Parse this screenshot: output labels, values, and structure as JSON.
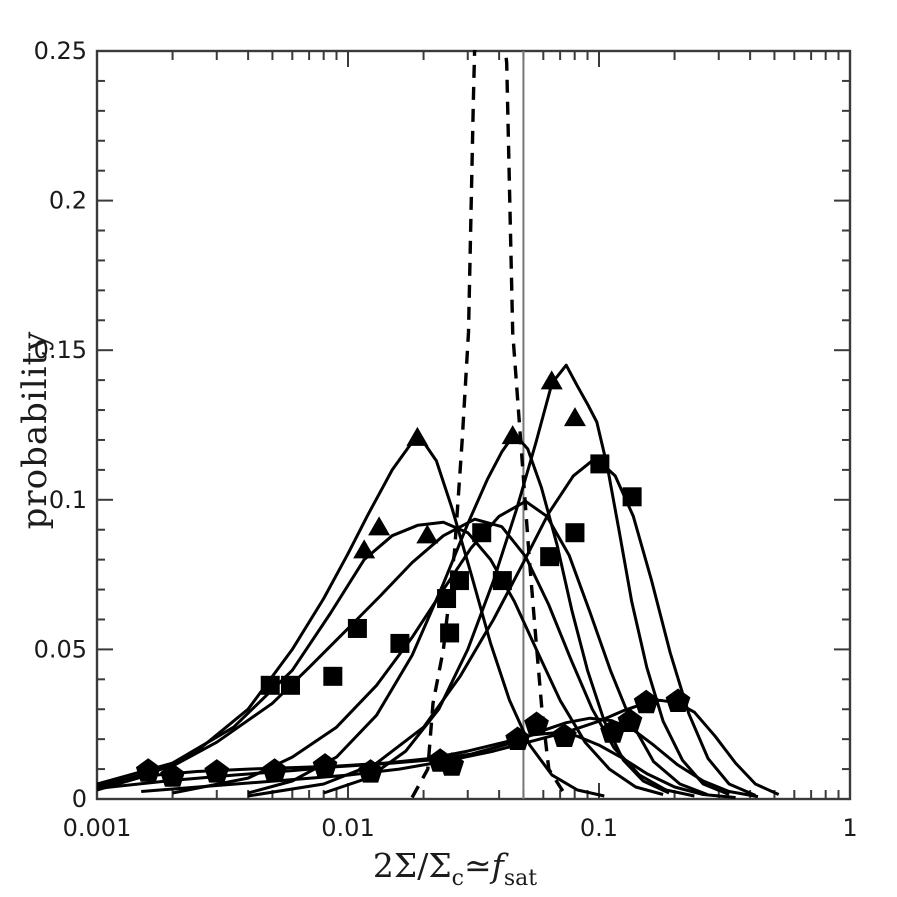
{
  "figure": {
    "background": "#ffffff",
    "frame_color": "#3a3a3a",
    "curve_color": "#000000",
    "reference_line_color": "#777777",
    "tick_label_color": "#1a1a1a"
  },
  "chart_data": {
    "type": "line",
    "title": "",
    "ylabel": "probability",
    "xlabel": {
      "pre": "2Σ/Σ",
      "sub_c": "c",
      "simeq": "≃",
      "f": "f",
      "sub_sat": "sat",
      "plain": "2Σ/Σc ≃ fsat"
    },
    "x_axis": {
      "scale": "log",
      "min": 0.001,
      "max": 1,
      "major_ticks": [
        {
          "v": 0.001,
          "label": "0.001"
        },
        {
          "v": 0.01,
          "label": "0.01"
        },
        {
          "v": 0.1,
          "label": "0.1"
        },
        {
          "v": 1,
          "label": "1"
        }
      ]
    },
    "y_axis": {
      "scale": "linear",
      "min": 0,
      "max": 0.25,
      "minor_step": 0.01,
      "major_ticks": [
        {
          "v": 0,
          "label": "0"
        },
        {
          "v": 0.05,
          "label": "0.05"
        },
        {
          "v": 0.1,
          "label": "0.1"
        },
        {
          "v": 0.15,
          "label": "0.15"
        },
        {
          "v": 0.2,
          "label": "0.2"
        },
        {
          "v": 0.25,
          "label": "0.25"
        }
      ]
    },
    "reference_vline": {
      "x": 0.05
    },
    "legend": "none",
    "grid": "off",
    "series": [
      {
        "name": "pentagon-curve-1",
        "marker": "pentagon",
        "line": "solid",
        "points": [
          [
            0.001,
            0.005
          ],
          [
            0.0016,
            0.0078
          ],
          [
            0.0025,
            0.0092
          ],
          [
            0.004,
            0.01
          ],
          [
            0.006,
            0.0105
          ],
          [
            0.009,
            0.011
          ],
          [
            0.014,
            0.012
          ],
          [
            0.021,
            0.0135
          ],
          [
            0.03,
            0.016
          ],
          [
            0.042,
            0.019
          ],
          [
            0.055,
            0.0215
          ],
          [
            0.068,
            0.0222
          ],
          [
            0.082,
            0.021
          ],
          [
            0.1,
            0.018
          ],
          [
            0.125,
            0.0135
          ],
          [
            0.155,
            0.0085
          ],
          [
            0.2,
            0.004
          ],
          [
            0.26,
            0.0015
          ],
          [
            0.35,
            0.0005
          ]
        ],
        "marker_points": [
          [
            0.0016,
            0.0093
          ],
          [
            0.0051,
            0.0093
          ],
          [
            0.0259,
            0.0113
          ],
          [
            0.0474,
            0.0199
          ]
        ]
      },
      {
        "name": "pentagon-curve-2",
        "marker": "pentagon",
        "line": "solid",
        "points": [
          [
            0.001,
            0.0035
          ],
          [
            0.002,
            0.0062
          ],
          [
            0.0035,
            0.008
          ],
          [
            0.006,
            0.0095
          ],
          [
            0.009,
            0.0108
          ],
          [
            0.014,
            0.0118
          ],
          [
            0.021,
            0.013
          ],
          [
            0.031,
            0.015
          ],
          [
            0.044,
            0.0185
          ],
          [
            0.058,
            0.0225
          ],
          [
            0.074,
            0.0255
          ],
          [
            0.092,
            0.027
          ],
          [
            0.112,
            0.0262
          ],
          [
            0.135,
            0.0235
          ],
          [
            0.165,
            0.018
          ],
          [
            0.205,
            0.0115
          ],
          [
            0.26,
            0.006
          ],
          [
            0.33,
            0.0025
          ],
          [
            0.43,
            0.0008
          ]
        ],
        "marker_points": [
          [
            0.002,
            0.0076
          ],
          [
            0.0081,
            0.011
          ],
          [
            0.0564,
            0.0249
          ],
          [
            0.1133,
            0.0223
          ],
          [
            0.1329,
            0.0259
          ]
        ]
      },
      {
        "name": "pentagon-curve-3",
        "marker": "pentagon",
        "line": "solid",
        "points": [
          [
            0.0015,
            0.0025
          ],
          [
            0.003,
            0.0045
          ],
          [
            0.006,
            0.0065
          ],
          [
            0.01,
            0.008
          ],
          [
            0.016,
            0.01
          ],
          [
            0.025,
            0.0128
          ],
          [
            0.038,
            0.016
          ],
          [
            0.055,
            0.0195
          ],
          [
            0.075,
            0.0225
          ],
          [
            0.1,
            0.026
          ],
          [
            0.125,
            0.0295
          ],
          [
            0.15,
            0.0318
          ],
          [
            0.175,
            0.033
          ],
          [
            0.205,
            0.0322
          ],
          [
            0.24,
            0.029
          ],
          [
            0.29,
            0.021
          ],
          [
            0.35,
            0.012
          ],
          [
            0.42,
            0.005
          ],
          [
            0.52,
            0.0015
          ]
        ],
        "marker_points": [
          [
            0.003,
            0.009
          ],
          [
            0.0123,
            0.009
          ],
          [
            0.0233,
            0.0126
          ],
          [
            0.0728,
            0.0209
          ],
          [
            0.1542,
            0.0322
          ],
          [
            0.2064,
            0.0326
          ]
        ]
      },
      {
        "name": "square-curve-1",
        "marker": "square",
        "line": "solid",
        "points": [
          [
            0.001,
            0.004
          ],
          [
            0.002,
            0.011
          ],
          [
            0.003,
            0.019
          ],
          [
            0.005,
            0.032
          ],
          [
            0.007,
            0.044
          ],
          [
            0.01,
            0.057
          ],
          [
            0.0135,
            0.068
          ],
          [
            0.018,
            0.079
          ],
          [
            0.024,
            0.088
          ],
          [
            0.032,
            0.0935
          ],
          [
            0.041,
            0.091
          ],
          [
            0.051,
            0.081
          ],
          [
            0.063,
            0.065
          ],
          [
            0.077,
            0.047
          ],
          [
            0.094,
            0.03
          ],
          [
            0.115,
            0.017
          ],
          [
            0.145,
            0.008
          ],
          [
            0.185,
            0.003
          ],
          [
            0.24,
            0.001
          ]
        ],
        "marker_points": [
          [
            0.0049,
            0.038
          ],
          [
            0.0109,
            0.057
          ],
          [
            0.0247,
            0.067
          ],
          [
            0.0412,
            0.073
          ]
        ]
      },
      {
        "name": "square-curve-2",
        "marker": "square",
        "line": "solid",
        "points": [
          [
            0.002,
            0.002
          ],
          [
            0.004,
            0.007
          ],
          [
            0.006,
            0.014
          ],
          [
            0.009,
            0.024
          ],
          [
            0.013,
            0.038
          ],
          [
            0.018,
            0.054
          ],
          [
            0.024,
            0.07
          ],
          [
            0.031,
            0.084
          ],
          [
            0.04,
            0.0945
          ],
          [
            0.051,
            0.0995
          ],
          [
            0.062,
            0.0945
          ],
          [
            0.076,
            0.0815
          ],
          [
            0.092,
            0.0625
          ],
          [
            0.111,
            0.043
          ],
          [
            0.135,
            0.0255
          ],
          [
            0.165,
            0.0125
          ],
          [
            0.21,
            0.005
          ],
          [
            0.27,
            0.0015
          ]
        ],
        "marker_points": [
          [
            0.0059,
            0.038
          ],
          [
            0.0161,
            0.052
          ],
          [
            0.0278,
            0.073
          ],
          [
            0.0636,
            0.081
          ]
        ]
      },
      {
        "name": "square-curve-3",
        "marker": "square",
        "line": "solid",
        "points": [
          [
            0.004,
            0.001
          ],
          [
            0.008,
            0.005
          ],
          [
            0.013,
            0.012
          ],
          [
            0.02,
            0.024
          ],
          [
            0.028,
            0.041
          ],
          [
            0.038,
            0.06
          ],
          [
            0.05,
            0.079
          ],
          [
            0.063,
            0.0955
          ],
          [
            0.079,
            0.108
          ],
          [
            0.097,
            0.114
          ],
          [
            0.116,
            0.108
          ],
          [
            0.137,
            0.0945
          ],
          [
            0.162,
            0.073
          ],
          [
            0.192,
            0.049
          ],
          [
            0.228,
            0.0285
          ],
          [
            0.272,
            0.0135
          ],
          [
            0.33,
            0.005
          ],
          [
            0.42,
            0.0012
          ]
        ],
        "marker_points": [
          [
            0.0087,
            0.041
          ],
          [
            0.0254,
            0.0555
          ],
          [
            0.0341,
            0.089
          ],
          [
            0.0802,
            0.089
          ],
          [
            0.1008,
            0.112
          ],
          [
            0.1355,
            0.101
          ]
        ]
      },
      {
        "name": "triangle-curve-1",
        "marker": "triangle",
        "line": "solid",
        "points": [
          [
            0.001,
            0.003
          ],
          [
            0.0016,
            0.008
          ],
          [
            0.0025,
            0.016
          ],
          [
            0.004,
            0.03
          ],
          [
            0.006,
            0.05
          ],
          [
            0.008,
            0.067
          ],
          [
            0.01,
            0.082
          ],
          [
            0.012,
            0.095
          ],
          [
            0.015,
            0.11
          ],
          [
            0.019,
            0.122
          ],
          [
            0.0225,
            0.113
          ],
          [
            0.026,
            0.097
          ],
          [
            0.031,
            0.075
          ],
          [
            0.037,
            0.052
          ],
          [
            0.044,
            0.033
          ],
          [
            0.053,
            0.018
          ],
          [
            0.065,
            0.008
          ],
          [
            0.082,
            0.003
          ],
          [
            0.105,
            0.001
          ]
        ],
        "marker_points": [
          [
            0.0133,
            0.0908
          ],
          [
            0.0189,
            0.1207
          ]
        ]
      },
      {
        "name": "triangle-curve-2-broad",
        "marker": "triangle",
        "line": "solid",
        "points": [
          [
            0.001,
            0.005
          ],
          [
            0.002,
            0.012
          ],
          [
            0.0035,
            0.024
          ],
          [
            0.006,
            0.043
          ],
          [
            0.0085,
            0.062
          ],
          [
            0.0116,
            0.08
          ],
          [
            0.015,
            0.088
          ],
          [
            0.019,
            0.0915
          ],
          [
            0.024,
            0.0925
          ],
          [
            0.03,
            0.089
          ],
          [
            0.037,
            0.08
          ],
          [
            0.046,
            0.066
          ],
          [
            0.057,
            0.049
          ],
          [
            0.07,
            0.033
          ],
          [
            0.088,
            0.019
          ],
          [
            0.11,
            0.01
          ],
          [
            0.14,
            0.004
          ],
          [
            0.18,
            0.0015
          ]
        ],
        "marker_points": [
          [
            0.0116,
            0.0831
          ],
          [
            0.0207,
            0.0881
          ]
        ]
      },
      {
        "name": "triangle-curve-3",
        "marker": "triangle",
        "line": "solid",
        "points": [
          [
            0.004,
            0.002
          ],
          [
            0.006,
            0.006
          ],
          [
            0.009,
            0.014
          ],
          [
            0.013,
            0.028
          ],
          [
            0.018,
            0.048
          ],
          [
            0.024,
            0.072
          ],
          [
            0.03,
            0.092
          ],
          [
            0.036,
            0.107
          ],
          [
            0.041,
            0.116
          ],
          [
            0.046,
            0.122
          ],
          [
            0.052,
            0.117
          ],
          [
            0.059,
            0.104
          ],
          [
            0.068,
            0.085
          ],
          [
            0.078,
            0.063
          ],
          [
            0.09,
            0.043
          ],
          [
            0.105,
            0.026
          ],
          [
            0.125,
            0.013
          ],
          [
            0.15,
            0.006
          ],
          [
            0.19,
            0.002
          ]
        ],
        "marker_points": [
          [
            0.0453,
            0.1213
          ]
        ]
      },
      {
        "name": "triangle-curve-4-tall",
        "marker": "triangle",
        "line": "solid",
        "points": [
          [
            0.008,
            0.002
          ],
          [
            0.012,
            0.007
          ],
          [
            0.017,
            0.016
          ],
          [
            0.023,
            0.03
          ],
          [
            0.03,
            0.05
          ],
          [
            0.038,
            0.073
          ],
          [
            0.047,
            0.097
          ],
          [
            0.056,
            0.119
          ],
          [
            0.065,
            0.139
          ],
          [
            0.074,
            0.145
          ],
          [
            0.082,
            0.138
          ],
          [
            0.09,
            0.132
          ],
          [
            0.098,
            0.126
          ],
          [
            0.108,
            0.111
          ],
          [
            0.12,
            0.09
          ],
          [
            0.135,
            0.066
          ],
          [
            0.155,
            0.044
          ],
          [
            0.18,
            0.026
          ],
          [
            0.215,
            0.013
          ],
          [
            0.26,
            0.005
          ],
          [
            0.33,
            0.0015
          ]
        ],
        "marker_points": [
          [
            0.0648,
            0.1396
          ],
          [
            0.0802,
            0.1273
          ]
        ]
      },
      {
        "name": "dashed-spike",
        "marker": "none",
        "line": "dashed",
        "points": [
          [
            0.018,
            0.0005
          ],
          [
            0.0208,
            0.01
          ],
          [
            0.0218,
            0.032
          ],
          [
            0.024,
            0.05
          ],
          [
            0.0266,
            0.083
          ],
          [
            0.0285,
            0.12
          ],
          [
            0.0302,
            0.156
          ],
          [
            0.0316,
            0.234
          ],
          [
            0.0322,
            0.262
          ],
          [
            0.041,
            0.262
          ],
          [
            0.0429,
            0.246
          ],
          [
            0.0453,
            0.156
          ],
          [
            0.0491,
            0.116
          ],
          [
            0.0528,
            0.08
          ],
          [
            0.0561,
            0.053
          ],
          [
            0.0592,
            0.03
          ],
          [
            0.0631,
            0.01
          ],
          [
            0.0738,
            0.001
          ]
        ],
        "marker_points": []
      }
    ]
  }
}
